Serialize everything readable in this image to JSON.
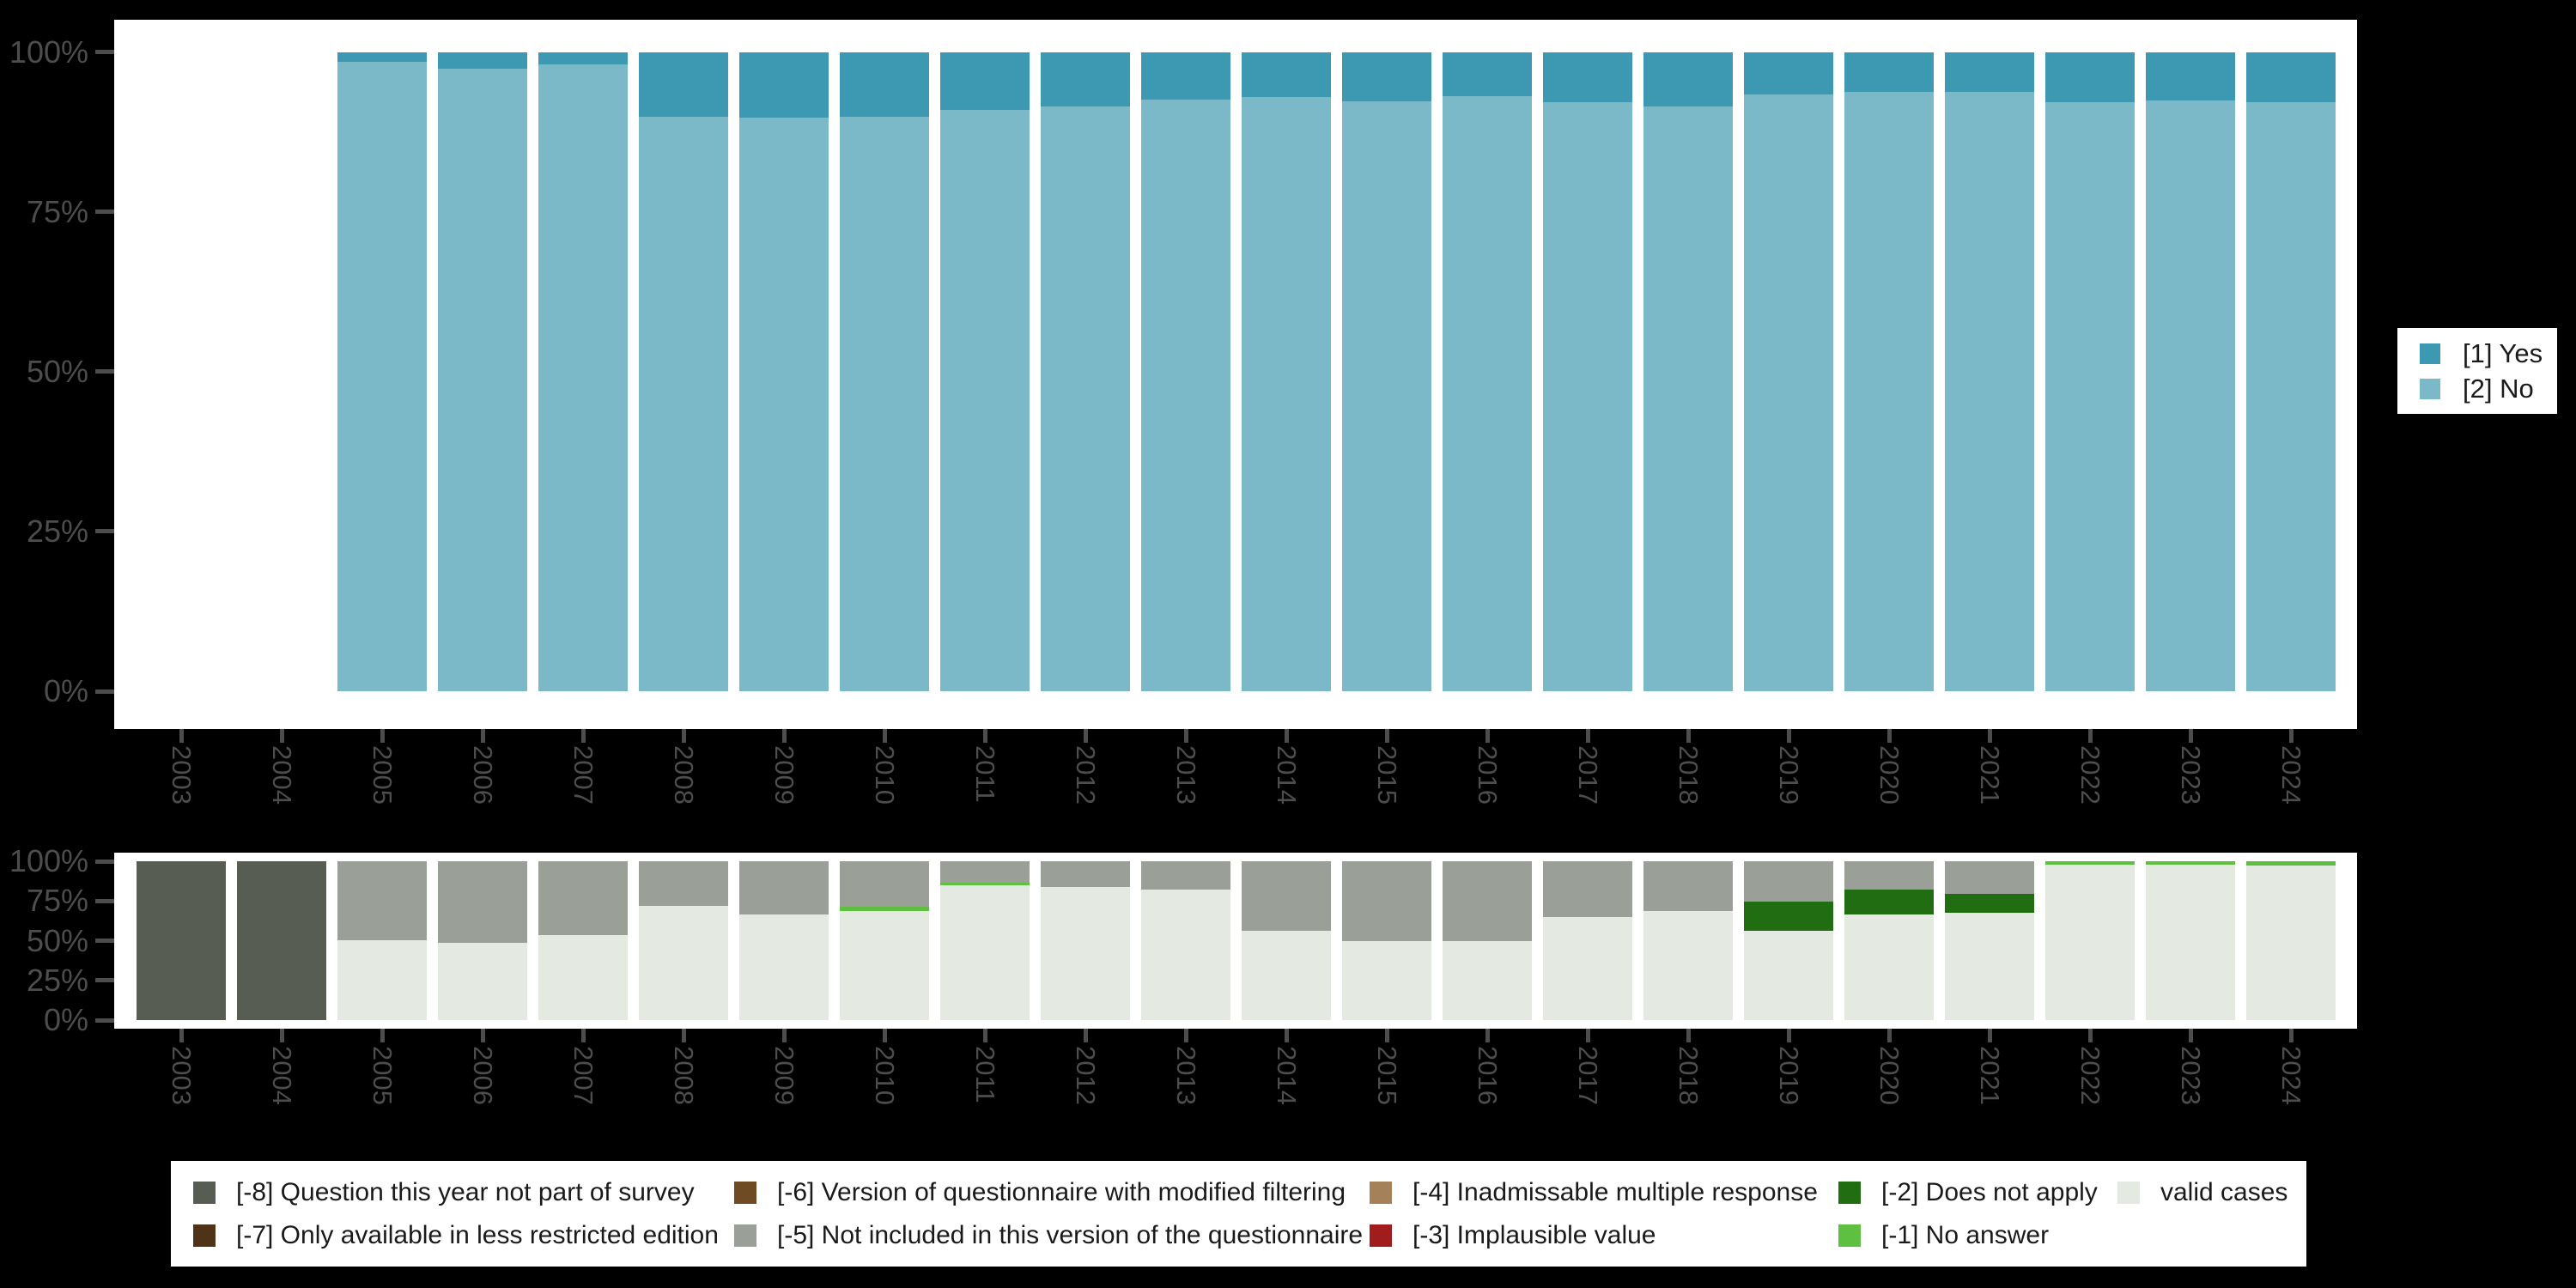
{
  "years": [
    "2003",
    "2004",
    "2005",
    "2006",
    "2007",
    "2008",
    "2009",
    "2010",
    "2011",
    "2012",
    "2013",
    "2014",
    "2015",
    "2016",
    "2017",
    "2018",
    "2019",
    "2020",
    "2021",
    "2022",
    "2023",
    "2024"
  ],
  "colors": {
    "yes": "#3c99b1",
    "no": "#7cb9c8",
    "m8": "#575d52",
    "m7": "#4f3317",
    "m6": "#6f4b24",
    "m5": "#9aa098",
    "m4": "#a48158",
    "m3": "#a11d1d",
    "m2": "#216d12",
    "m1": "#5ebf41",
    "valid": "#e4e9e2",
    "axis_text": "#4d4d4d",
    "plot_bg": "#ffffff",
    "page_bg": "#000000",
    "legend_bg": "#ffffff"
  },
  "top_chart": {
    "y_ticks": [
      "100%",
      "75%",
      "50%",
      "25%",
      "0%"
    ],
    "legend": [
      {
        "key": "yes",
        "label": "[1] Yes"
      },
      {
        "key": "no",
        "label": "[2] No"
      }
    ]
  },
  "bottom_chart": {
    "y_ticks": [
      "100%",
      "75%",
      "50%",
      "25%",
      "0%"
    ]
  },
  "missing_legend": {
    "rows": [
      [
        {
          "key": "m8",
          "label": "[-8] Question this year not part of survey"
        },
        {
          "key": "m6",
          "label": "[-6] Version of questionnaire with modified filtering"
        },
        {
          "key": "m4",
          "label": "[-4] Inadmissable multiple response"
        },
        {
          "key": "m2",
          "label": "[-2] Does not apply"
        },
        {
          "key": "valid",
          "label": "valid cases"
        }
      ],
      [
        {
          "key": "m7",
          "label": "[-7] Only available in less restricted edition"
        },
        {
          "key": "m5",
          "label": "[-5] Not included in this version of the questionnaire"
        },
        {
          "key": "m3",
          "label": "[-3] Implausible value"
        },
        {
          "key": "m1",
          "label": "[-1] No answer"
        }
      ]
    ]
  },
  "chart_data": [
    {
      "type": "bar",
      "stacked": true,
      "title": "",
      "categories": [
        "2003",
        "2004",
        "2005",
        "2006",
        "2007",
        "2008",
        "2009",
        "2010",
        "2011",
        "2012",
        "2013",
        "2014",
        "2015",
        "2016",
        "2017",
        "2018",
        "2019",
        "2020",
        "2021",
        "2022",
        "2023",
        "2024"
      ],
      "ylim": [
        0,
        100
      ],
      "y_tick_labels": [
        "0%",
        "25%",
        "50%",
        "75%",
        "100%"
      ],
      "grid": false,
      "legend_position": "right",
      "series": [
        {
          "name": "[1] Yes",
          "color_key": "yes",
          "values": [
            null,
            null,
            1.5,
            2.6,
            2.0,
            10.1,
            10.3,
            10.1,
            9.1,
            8.5,
            7.4,
            7.1,
            7.7,
            6.9,
            7.8,
            8.5,
            6.7,
            6.3,
            6.2,
            7.8,
            7.6,
            7.9
          ]
        },
        {
          "name": "[2] No",
          "color_key": "no",
          "values": [
            null,
            null,
            98.5,
            97.4,
            98.0,
            89.9,
            89.7,
            89.9,
            90.9,
            91.5,
            92.6,
            92.9,
            92.3,
            93.1,
            92.2,
            91.5,
            93.3,
            93.7,
            93.8,
            92.2,
            92.4,
            92.1
          ]
        }
      ]
    },
    {
      "type": "bar",
      "stacked": true,
      "title": "",
      "categories": [
        "2003",
        "2004",
        "2005",
        "2006",
        "2007",
        "2008",
        "2009",
        "2010",
        "2011",
        "2012",
        "2013",
        "2014",
        "2015",
        "2016",
        "2017",
        "2018",
        "2019",
        "2020",
        "2021",
        "2022",
        "2023",
        "2024"
      ],
      "ylim": [
        0,
        100
      ],
      "y_tick_labels": [
        "0%",
        "25%",
        "50%",
        "75%",
        "100%"
      ],
      "grid": false,
      "legend_position": "bottom",
      "series": [
        {
          "name": "[-8] Question this year not part of survey",
          "color_key": "m8",
          "values": [
            100,
            100,
            0,
            0,
            0,
            0,
            0,
            0,
            0,
            0,
            0,
            0,
            0,
            0,
            0,
            0,
            0,
            0,
            0,
            0,
            0,
            0
          ]
        },
        {
          "name": "[-5] Not included in this version of the questionnaire",
          "color_key": "m5",
          "values": [
            0,
            0,
            49.6,
            51.3,
            46.6,
            28.3,
            33.5,
            28.9,
            13.7,
            16.4,
            17.7,
            43.8,
            50,
            50,
            35.4,
            31.5,
            25.3,
            17.7,
            20.5,
            0,
            0,
            0
          ]
        },
        {
          "name": "[-2] Does not apply",
          "color_key": "m2",
          "values": [
            0,
            0,
            0,
            0,
            0,
            0,
            0,
            0,
            0,
            0,
            0,
            0,
            0,
            0,
            0,
            0,
            18.3,
            16.0,
            11.9,
            0,
            0,
            0
          ]
        },
        {
          "name": "[-1] No answer",
          "color_key": "m1",
          "values": [
            0,
            0,
            0,
            0,
            0,
            0,
            0,
            2.7,
            1.3,
            0,
            0,
            0,
            0,
            0,
            0,
            0,
            0,
            0,
            0,
            2.0,
            2.0,
            2.5
          ]
        },
        {
          "name": "valid cases",
          "color_key": "valid",
          "values": [
            0,
            0,
            50.4,
            48.7,
            53.4,
            71.7,
            66.5,
            68.4,
            85.0,
            83.6,
            82.3,
            56.2,
            50,
            50,
            64.6,
            68.5,
            56.4,
            66.3,
            67.6,
            98.0,
            98.0,
            97.5
          ]
        }
      ]
    }
  ]
}
